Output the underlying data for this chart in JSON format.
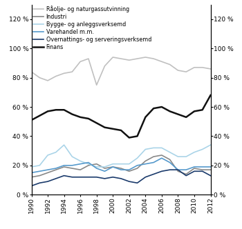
{
  "years": [
    1990,
    1991,
    1992,
    1993,
    1994,
    1995,
    1996,
    1997,
    1998,
    1999,
    2000,
    2001,
    2002,
    2003,
    2004,
    2005,
    2006,
    2007,
    2008,
    2009,
    2010,
    2011,
    2012
  ],
  "raolje": [
    84,
    80,
    78,
    81,
    83,
    84,
    91,
    93,
    75,
    88,
    94,
    93,
    92,
    93,
    94,
    93,
    91,
    89,
    85,
    84,
    87,
    87,
    86
  ],
  "industri": [
    12,
    13,
    15,
    17,
    19,
    18,
    17,
    20,
    21,
    18,
    19,
    18,
    16,
    18,
    23,
    26,
    27,
    24,
    16,
    14,
    18,
    17,
    17
  ],
  "bygge": [
    19,
    20,
    27,
    29,
    34,
    26,
    23,
    21,
    19,
    19,
    21,
    21,
    21,
    25,
    31,
    32,
    32,
    29,
    26,
    26,
    29,
    31,
    34
  ],
  "varehandel": [
    15,
    16,
    17,
    18,
    20,
    20,
    21,
    22,
    18,
    16,
    19,
    17,
    17,
    20,
    21,
    22,
    25,
    22,
    17,
    17,
    19,
    19,
    19
  ],
  "overnattings": [
    6,
    8,
    9,
    11,
    13,
    12,
    12,
    12,
    12,
    11,
    12,
    11,
    9,
    8,
    12,
    14,
    16,
    17,
    17,
    13,
    16,
    16,
    13
  ],
  "finans": [
    51,
    54,
    57,
    58,
    58,
    55,
    53,
    52,
    49,
    46,
    45,
    44,
    39,
    40,
    53,
    59,
    60,
    57,
    55,
    53,
    57,
    58,
    68
  ],
  "series_colors": {
    "raolje": "#c0c0c0",
    "industri": "#888888",
    "bygge": "#aad4e8",
    "varehandel": "#5599cc",
    "overnattings": "#1a3a6b",
    "finans": "#111111"
  },
  "series_linewidths": {
    "raolje": 1.2,
    "industri": 1.2,
    "bygge": 1.2,
    "varehandel": 1.2,
    "overnattings": 1.2,
    "finans": 1.8
  },
  "legend_labels": [
    "Råolje- og naturgassutvinning",
    "Industri",
    "Bygge- og anleggsverksemd",
    "Varehandel m.m.",
    "Overnattings- og serveringsverksemd",
    "Finans"
  ],
  "ylim": [
    0,
    130
  ],
  "yticks": [
    0,
    20,
    40,
    60,
    80,
    100,
    120
  ],
  "xticks": [
    1990,
    1992,
    1994,
    1996,
    1998,
    2000,
    2002,
    2004,
    2006,
    2008,
    2010,
    2012
  ],
  "background_color": "#ffffff"
}
